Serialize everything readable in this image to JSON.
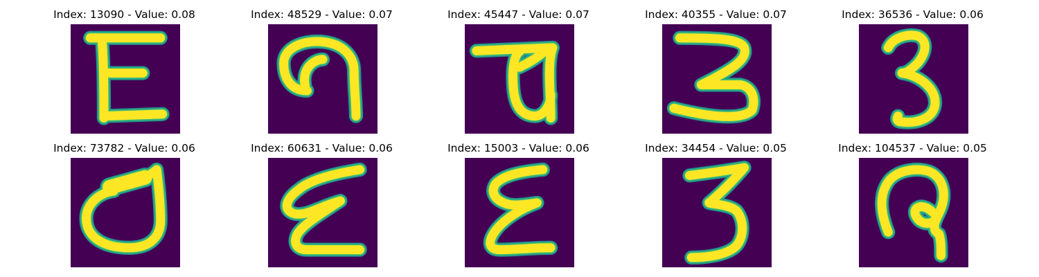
{
  "colors": {
    "background": "#440154",
    "stroke_core": "#fde725",
    "stroke_edge_mid": "#35b779",
    "stroke_edge_outer": "#21918c"
  },
  "images": [
    {
      "title": "Index: 13090 - Value: 0.08",
      "glyph": "E"
    },
    {
      "title": "Index: 48529 - Value: 0.07",
      "glyph": "backward-c-curl"
    },
    {
      "title": "Index: 45447 - Value: 0.07",
      "glyph": "flag-loop"
    },
    {
      "title": "Index: 40355 - Value: 0.07",
      "glyph": "3-wide"
    },
    {
      "title": "Index: 36536 - Value: 0.06",
      "glyph": "3-thin"
    },
    {
      "title": "Index: 73782 - Value: 0.06",
      "glyph": "d-loop"
    },
    {
      "title": "Index: 60631 - Value: 0.06",
      "glyph": "epsilon-slant"
    },
    {
      "title": "Index: 15003 - Value: 0.06",
      "glyph": "epsilon"
    },
    {
      "title": "Index: 34454 - Value: 0.05",
      "glyph": "3-narrow"
    },
    {
      "title": "Index: 104537 - Value: 0.05",
      "glyph": "hook"
    }
  ]
}
